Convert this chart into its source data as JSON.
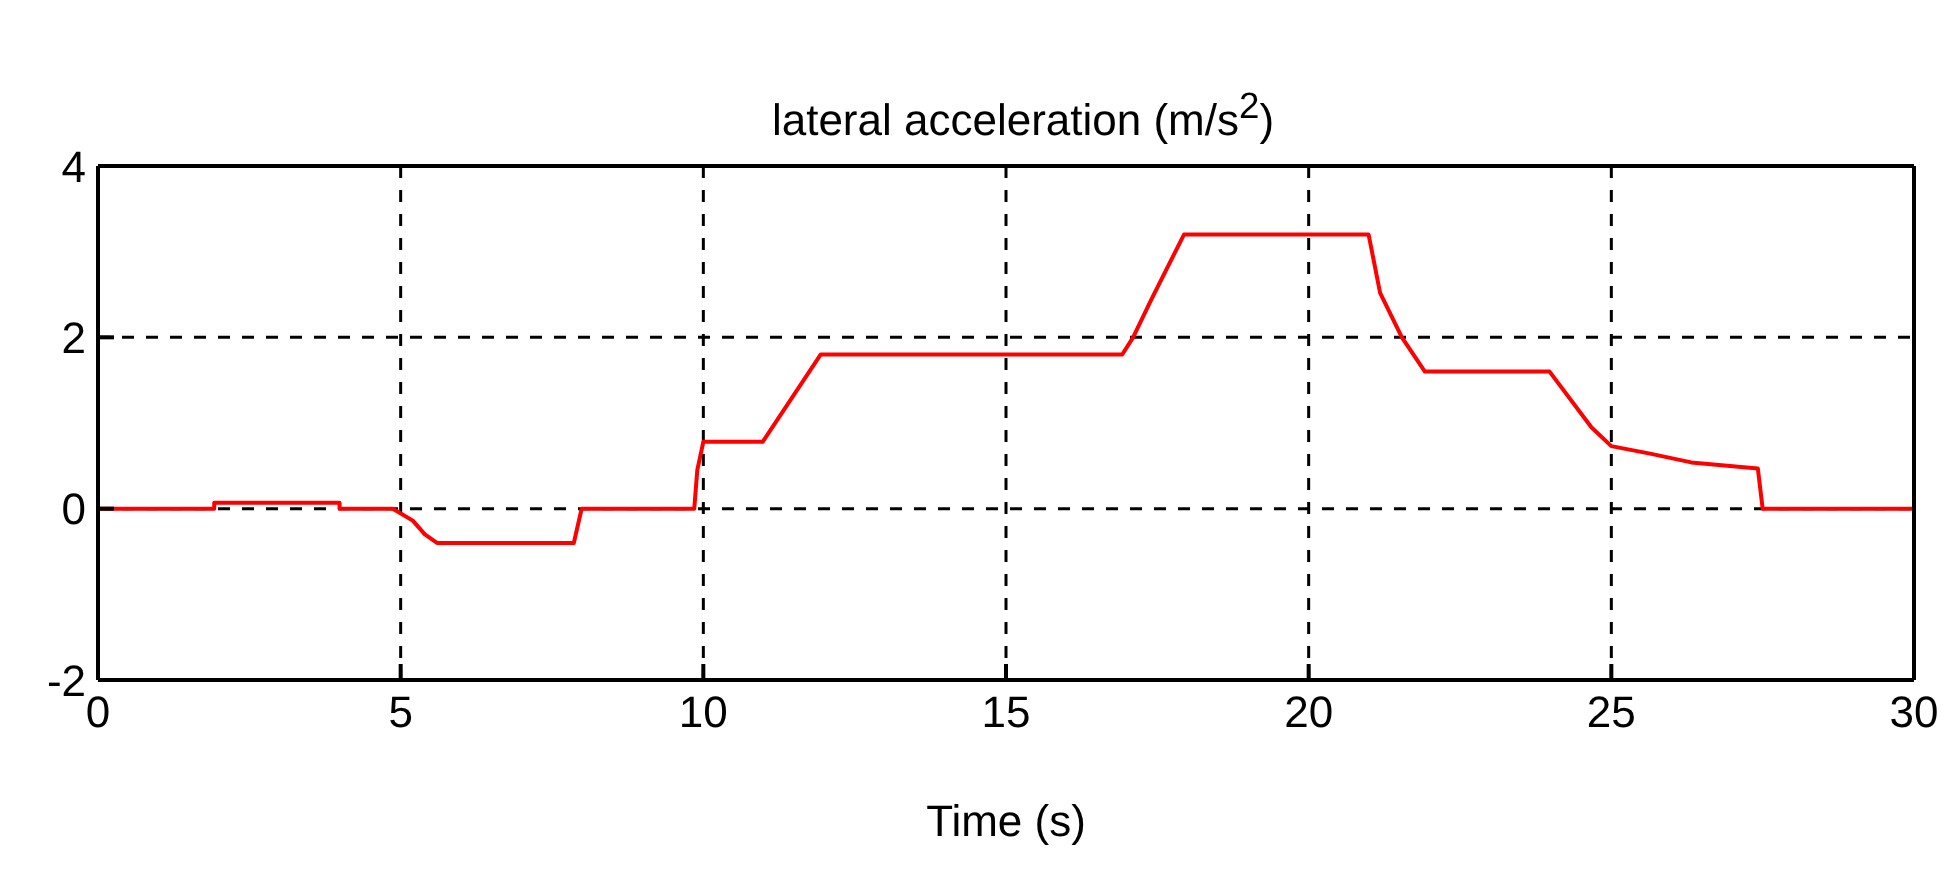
{
  "chart_data": {
    "type": "line",
    "title": "lateral acceleration (m/s$^{2}$)",
    "xlabel": "Time (s)",
    "x": [
      0,
      1.92,
      1.92,
      3.99,
      3.99,
      4.87,
      5.2,
      5.4,
      5.6,
      7.86,
      7.99,
      9.85,
      9.9,
      10,
      10.98,
      11.94,
      16.92,
      17.1,
      17.4,
      17.94,
      20.99,
      21.18,
      21.54,
      21.92,
      23.98,
      24.67,
      25,
      25.66,
      26.32,
      27.42,
      27.5,
      30
    ],
    "series": [
      {
        "color": "#ff0000",
        "values": [
          0,
          0,
          0.07,
          0.07,
          0,
          0,
          -0.14,
          -0.3,
          -0.4,
          -0.4,
          0,
          0,
          0.45,
          0.78,
          0.78,
          1.8,
          1.8,
          2,
          2.44,
          3.2,
          3.2,
          2.52,
          2,
          1.6,
          1.6,
          0.95,
          0.73,
          0.64,
          0.54,
          0.47,
          0,
          0
        ]
      }
    ],
    "xlim": [
      0,
      30
    ],
    "xticks": [
      0,
      5,
      10,
      15,
      20,
      25,
      30
    ],
    "ylim": [
      -2,
      4
    ],
    "yticks": [
      -2,
      0,
      2,
      4
    ],
    "grid": true,
    "marker": "none",
    "line_style": "solid"
  }
}
